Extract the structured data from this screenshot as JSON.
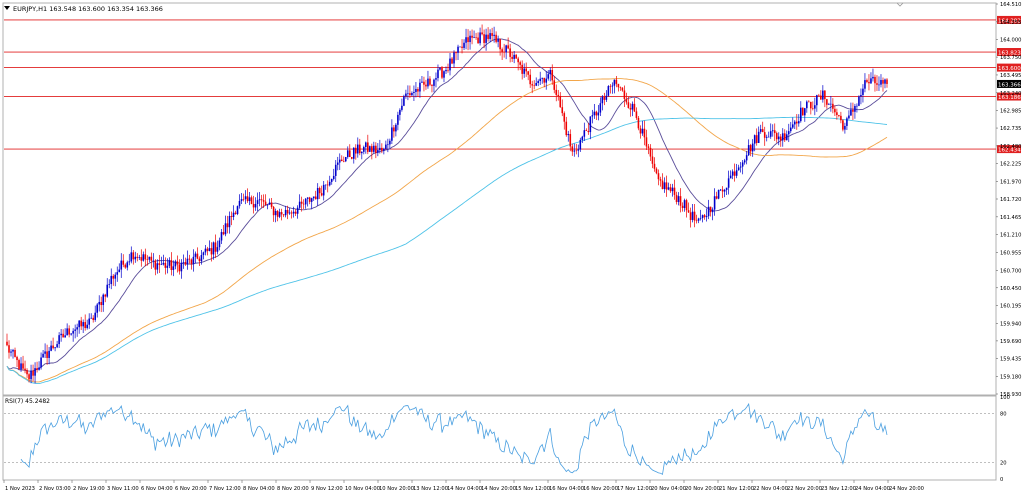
{
  "header": {
    "symbol_line": "EURJPY,H1  163.548 163.600 163.354 163.366"
  },
  "rsi": {
    "label": "RSI(7) 45.2482",
    "levels": [
      80,
      20
    ],
    "scale_labels": [
      "100",
      "80",
      "20",
      "0"
    ]
  },
  "colors": {
    "bull": "#0000cc",
    "bear": "#ee0000",
    "ma_fast": "#5a4d9a",
    "ma_mid": "#f2a64a",
    "ma_slow": "#4fc3e8",
    "rsi_line": "#4a9fe0",
    "level_line": "#e02020"
  },
  "chart_data": [
    {
      "type": "candlestick",
      "title": "EURJPY,H1",
      "ylim": [
        158.93,
        164.51
      ],
      "y_ticks": [
        "164.510",
        "164.255",
        "164.000",
        "163.750",
        "163.495",
        "163.240",
        "162.985",
        "162.735",
        "162.480",
        "162.225",
        "161.970",
        "161.720",
        "161.465",
        "161.210",
        "160.955",
        "160.700",
        "160.450",
        "160.195",
        "159.940",
        "159.690",
        "159.435",
        "159.180",
        "158.930"
      ],
      "x_ticks": [
        "1 Nov 2023",
        "2 Nov 03:00",
        "2 Nov 19:00",
        "3 Nov 11:00",
        "6 Nov 04:00",
        "6 Nov 20:00",
        "7 Nov 12:00",
        "8 Nov 04:00",
        "8 Nov 20:00",
        "9 Nov 12:00",
        "10 Nov 04:00",
        "10 Nov 20:00",
        "13 Nov 12:00",
        "14 Nov 04:00",
        "14 Nov 20:00",
        "15 Nov 12:00",
        "16 Nov 04:00",
        "16 Nov 20:00",
        "17 Nov 12:00",
        "20 Nov 04:00",
        "20 Nov 20:00",
        "21 Nov 12:00",
        "22 Nov 04:00",
        "22 Nov 20:00",
        "23 Nov 12:00",
        "24 Nov 04:00",
        "24 Nov 20:00"
      ],
      "waypoints": [
        159.6,
        159.15,
        159.55,
        159.85,
        159.95,
        160.6,
        160.95,
        160.8,
        160.75,
        160.85,
        161.05,
        161.65,
        161.7,
        161.5,
        161.6,
        161.85,
        162.3,
        162.45,
        162.4,
        163.2,
        163.35,
        163.6,
        164.0,
        164.05,
        163.8,
        163.4,
        163.5,
        162.35,
        162.9,
        163.4,
        162.95,
        162.0,
        161.75,
        161.35,
        161.8,
        162.25,
        162.7,
        162.6,
        163.0,
        163.2,
        162.75,
        163.4,
        163.35
      ],
      "horizontal_levels": [
        {
          "value": 164.282,
          "label": "164.282"
        },
        {
          "value": 163.823,
          "label": "163.823"
        },
        {
          "value": 163.6,
          "label": "163.600"
        },
        {
          "value": 163.186,
          "label": "163.186"
        },
        {
          "value": 162.434,
          "label": "162.434"
        }
      ],
      "current_price": {
        "value": 163.366,
        "label": "163.366"
      },
      "series": [
        {
          "kind": "candles"
        },
        {
          "kind": "moving-average",
          "period": 20
        },
        {
          "kind": "moving-average",
          "period": 100
        },
        {
          "kind": "moving-average",
          "period": 200
        }
      ]
    },
    {
      "type": "line",
      "title": "RSI(7) 45.2482",
      "ylim": [
        0,
        100
      ]
    }
  ]
}
